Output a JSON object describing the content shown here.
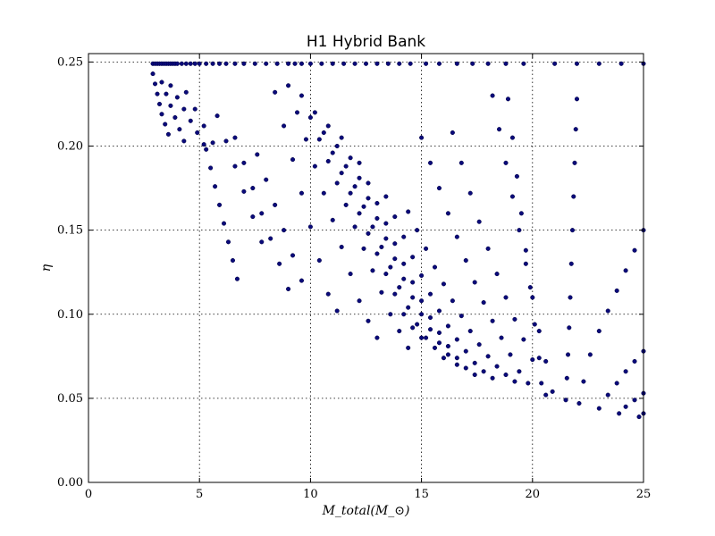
{
  "chart_data": {
    "type": "scatter",
    "title": "H1 Hybrid Bank",
    "xlabel": "M_total(M_⊙)",
    "ylabel": "η",
    "xlim": [
      0,
      25
    ],
    "ylim": [
      0.0,
      0.255
    ],
    "xticks": [
      "0",
      "5",
      "10",
      "15",
      "20",
      "25"
    ],
    "yticks": [
      "0.00",
      "0.05",
      "0.10",
      "0.15",
      "0.20",
      "0.25"
    ],
    "grid": true,
    "marker_color": "#0a0a7a",
    "top_row": {
      "y": 0.249,
      "x": [
        2.9,
        3.0,
        3.1,
        3.2,
        3.3,
        3.4,
        3.5,
        3.6,
        3.7,
        3.8,
        3.9,
        4.0,
        4.2,
        4.4,
        4.6,
        4.8,
        5.0,
        5.3,
        5.6,
        5.9,
        6.2,
        6.6,
        7.0,
        7.5,
        8.0,
        8.5,
        9.0,
        9.3,
        9.6,
        10.0,
        10.5,
        11.0,
        11.5,
        12.0,
        12.5,
        13.0,
        13.5,
        14.0,
        14.5,
        15.2,
        15.8,
        16.6,
        17.3,
        18.0,
        18.8,
        19.6,
        21.0,
        22.0,
        23.0,
        24.0,
        25.0
      ]
    },
    "rays": [
      {
        "x": [
          2.9,
          3.0,
          3.1,
          3.2,
          3.3,
          3.45,
          3.6
        ],
        "y": [
          0.243,
          0.237,
          0.231,
          0.225,
          0.219,
          0.213,
          0.207
        ]
      },
      {
        "x": [
          3.3,
          3.5,
          3.7,
          3.9,
          4.1,
          4.3
        ],
        "y": [
          0.238,
          0.231,
          0.224,
          0.217,
          0.21,
          0.203
        ]
      },
      {
        "x": [
          3.7,
          4.0,
          4.3,
          4.6,
          4.9,
          5.2
        ],
        "y": [
          0.236,
          0.229,
          0.222,
          0.215,
          0.208,
          0.201
        ]
      },
      {
        "x": [
          4.4,
          4.8,
          5.2,
          5.6
        ],
        "y": [
          0.232,
          0.222,
          0.212,
          0.202
        ]
      },
      {
        "x": [
          5.3,
          5.5,
          5.7,
          5.9,
          6.1,
          6.3,
          6.5,
          6.7
        ],
        "y": [
          0.198,
          0.187,
          0.176,
          0.165,
          0.154,
          0.143,
          0.132,
          0.121
        ]
      },
      {
        "x": [
          5.8,
          6.2,
          6.6,
          7.0,
          7.4,
          7.8
        ],
        "y": [
          0.218,
          0.203,
          0.188,
          0.173,
          0.158,
          0.143
        ]
      },
      {
        "x": [
          6.6,
          7.0,
          7.4,
          7.8,
          8.2,
          8.6,
          9.0
        ],
        "y": [
          0.205,
          0.19,
          0.175,
          0.16,
          0.145,
          0.13,
          0.115
        ]
      },
      {
        "x": [
          7.6,
          8.0,
          8.4,
          8.8,
          9.2,
          9.6
        ],
        "y": [
          0.195,
          0.18,
          0.165,
          0.15,
          0.135,
          0.12
        ]
      },
      {
        "x": [
          8.4,
          8.8,
          9.2,
          9.6,
          10.0,
          10.4,
          10.8,
          11.2
        ],
        "y": [
          0.232,
          0.212,
          0.192,
          0.172,
          0.152,
          0.132,
          0.112,
          0.102
        ]
      },
      {
        "x": [
          9.0,
          9.4,
          9.8,
          10.2,
          10.6,
          11.0,
          11.4,
          11.8,
          12.2,
          12.6,
          13.0
        ],
        "y": [
          0.236,
          0.22,
          0.204,
          0.188,
          0.172,
          0.156,
          0.14,
          0.124,
          0.108,
          0.096,
          0.086
        ]
      },
      {
        "x": [
          9.6,
          10.0,
          10.4,
          10.8,
          11.2,
          11.6,
          12.0,
          12.4,
          12.8,
          13.2,
          13.6,
          14.0,
          14.4
        ],
        "y": [
          0.23,
          0.217,
          0.204,
          0.191,
          0.178,
          0.165,
          0.152,
          0.139,
          0.126,
          0.113,
          0.1,
          0.09,
          0.08
        ]
      },
      {
        "x": [
          10.2,
          10.6,
          11.0,
          11.4,
          11.8,
          12.2,
          12.6,
          13.0,
          13.4,
          13.8,
          14.2,
          14.6,
          15.0
        ],
        "y": [
          0.22,
          0.208,
          0.196,
          0.184,
          0.172,
          0.16,
          0.148,
          0.136,
          0.124,
          0.112,
          0.1,
          0.092,
          0.086
        ]
      },
      {
        "x": [
          10.8,
          11.2,
          11.6,
          12.0,
          12.4,
          12.8,
          13.2,
          13.6,
          14.0,
          14.4,
          14.8,
          15.2,
          15.6,
          16.0
        ],
        "y": [
          0.212,
          0.2,
          0.188,
          0.176,
          0.164,
          0.152,
          0.14,
          0.128,
          0.116,
          0.104,
          0.094,
          0.086,
          0.08,
          0.074
        ]
      },
      {
        "x": [
          11.4,
          11.8,
          12.2,
          12.6,
          13.0,
          13.4,
          13.8,
          14.2,
          14.6,
          15.0,
          15.4,
          15.8,
          16.2,
          16.6
        ],
        "y": [
          0.205,
          0.193,
          0.181,
          0.169,
          0.157,
          0.145,
          0.133,
          0.121,
          0.11,
          0.1,
          0.091,
          0.083,
          0.076,
          0.07
        ]
      },
      {
        "x": [
          12.2,
          12.6,
          13.0,
          13.4,
          13.8,
          14.2,
          14.6,
          15.0,
          15.4,
          15.8,
          16.2,
          16.6,
          17.0,
          17.4
        ],
        "y": [
          0.19,
          0.178,
          0.166,
          0.154,
          0.142,
          0.13,
          0.119,
          0.108,
          0.098,
          0.089,
          0.081,
          0.074,
          0.068,
          0.064
        ]
      },
      {
        "x": [
          13.4,
          13.8,
          14.2,
          14.6,
          15.0,
          15.4,
          15.8,
          16.2,
          16.6,
          17.0,
          17.4,
          17.8,
          18.2
        ],
        "y": [
          0.17,
          0.158,
          0.146,
          0.134,
          0.123,
          0.112,
          0.102,
          0.093,
          0.085,
          0.078,
          0.071,
          0.066,
          0.062
        ]
      },
      {
        "x": [
          14.4,
          14.8,
          15.2,
          15.6,
          16.0,
          16.4,
          16.8,
          17.2,
          17.6,
          18.0,
          18.4,
          18.8,
          19.2
        ],
        "y": [
          0.161,
          0.15,
          0.139,
          0.128,
          0.118,
          0.108,
          0.099,
          0.09,
          0.082,
          0.075,
          0.069,
          0.064,
          0.06
        ]
      },
      {
        "x": [
          15.0,
          15.4,
          15.8,
          16.2,
          16.6,
          17.0,
          17.4,
          17.8,
          18.2,
          18.6,
          19.0,
          19.4,
          19.8
        ],
        "y": [
          0.205,
          0.19,
          0.175,
          0.16,
          0.146,
          0.132,
          0.119,
          0.107,
          0.096,
          0.086,
          0.076,
          0.066,
          0.059
        ]
      },
      {
        "x": [
          16.4,
          16.8,
          17.2,
          17.6,
          18.0,
          18.4,
          18.8,
          19.2,
          19.6,
          20.0,
          20.4
        ],
        "y": [
          0.208,
          0.19,
          0.172,
          0.155,
          0.139,
          0.124,
          0.11,
          0.097,
          0.085,
          0.073,
          0.059
        ]
      },
      {
        "x": [
          18.2,
          18.5,
          18.8,
          19.1,
          19.4,
          19.7,
          20.0,
          20.3,
          20.6,
          20.9
        ],
        "y": [
          0.23,
          0.21,
          0.19,
          0.17,
          0.15,
          0.13,
          0.11,
          0.09,
          0.072,
          0.054
        ]
      },
      {
        "x": [
          18.9,
          19.1,
          19.3,
          19.5,
          19.7,
          19.9,
          20.1,
          20.3,
          20.6
        ],
        "y": [
          0.228,
          0.205,
          0.182,
          0.16,
          0.138,
          0.116,
          0.094,
          0.074,
          0.052
        ]
      },
      {
        "x": [
          22.0,
          21.95,
          21.9,
          21.85,
          21.8,
          21.75,
          21.7,
          21.65,
          21.6,
          21.55,
          21.5
        ],
        "y": [
          0.228,
          0.21,
          0.19,
          0.17,
          0.15,
          0.13,
          0.11,
          0.092,
          0.076,
          0.062,
          0.049
        ]
      },
      {
        "x": [
          25.0,
          24.6,
          24.2,
          23.8,
          23.4,
          23.0,
          22.6,
          22.3,
          22.1
        ],
        "y": [
          0.15,
          0.138,
          0.126,
          0.114,
          0.102,
          0.09,
          0.076,
          0.06,
          0.047
        ]
      },
      {
        "x": [
          25.0,
          24.6,
          24.2,
          23.8,
          23.4,
          23.0
        ],
        "y": [
          0.078,
          0.072,
          0.066,
          0.059,
          0.052,
          0.044
        ]
      },
      {
        "x": [
          25.0,
          24.6,
          24.2,
          23.9
        ],
        "y": [
          0.053,
          0.049,
          0.045,
          0.041
        ]
      },
      {
        "x": [
          25.0,
          24.8
        ],
        "y": [
          0.041,
          0.039
        ]
      }
    ]
  }
}
